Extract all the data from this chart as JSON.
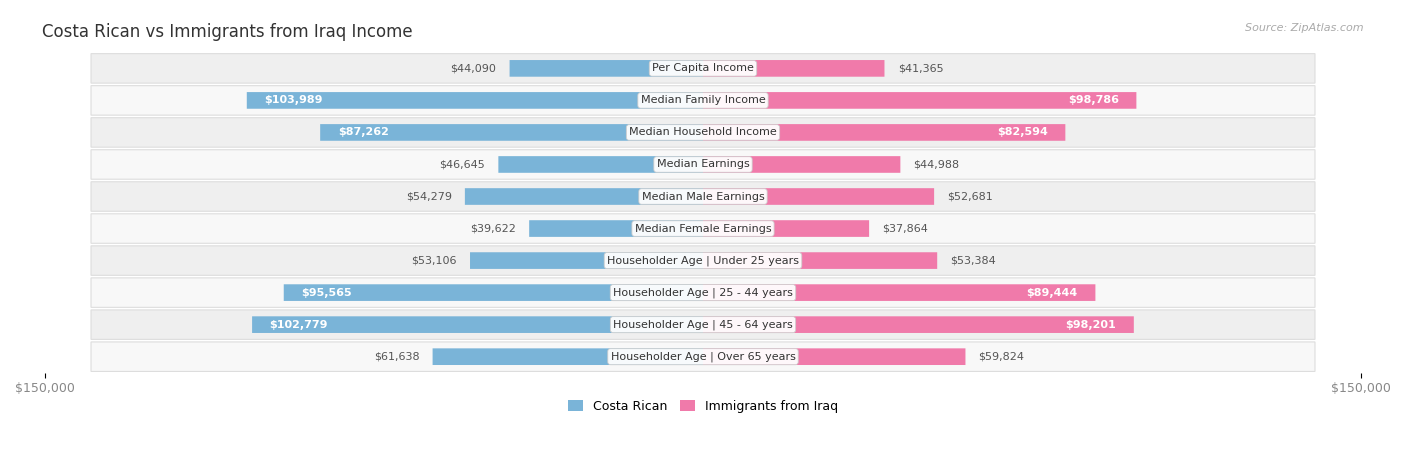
{
  "title": "Costa Rican vs Immigrants from Iraq Income",
  "source": "Source: ZipAtlas.com",
  "categories": [
    "Per Capita Income",
    "Median Family Income",
    "Median Household Income",
    "Median Earnings",
    "Median Male Earnings",
    "Median Female Earnings",
    "Householder Age | Under 25 years",
    "Householder Age | 25 - 44 years",
    "Householder Age | 45 - 64 years",
    "Householder Age | Over 65 years"
  ],
  "costa_rican": [
    44090,
    103989,
    87262,
    46645,
    54279,
    39622,
    53106,
    95565,
    102779,
    61638
  ],
  "iraq": [
    41365,
    98786,
    82594,
    44988,
    52681,
    37864,
    53384,
    89444,
    98201,
    59824
  ],
  "costa_rican_labels": [
    "$44,090",
    "$103,989",
    "$87,262",
    "$46,645",
    "$54,279",
    "$39,622",
    "$53,106",
    "$95,565",
    "$102,779",
    "$61,638"
  ],
  "iraq_labels": [
    "$41,365",
    "$98,786",
    "$82,594",
    "$44,988",
    "$52,681",
    "$37,864",
    "$53,384",
    "$89,444",
    "$98,201",
    "$59,824"
  ],
  "costa_rican_color": "#7ab4d8",
  "iraq_color": "#f07aaa",
  "max_value": 150000,
  "legend_costa_rican": "Costa Rican",
  "legend_iraq": "Immigrants from Iraq",
  "background_color": "#ffffff",
  "inside_label_threshold": 65000,
  "row_bg_odd": "#efefef",
  "row_bg_even": "#f8f8f8",
  "row_border_color": "#dddddd"
}
